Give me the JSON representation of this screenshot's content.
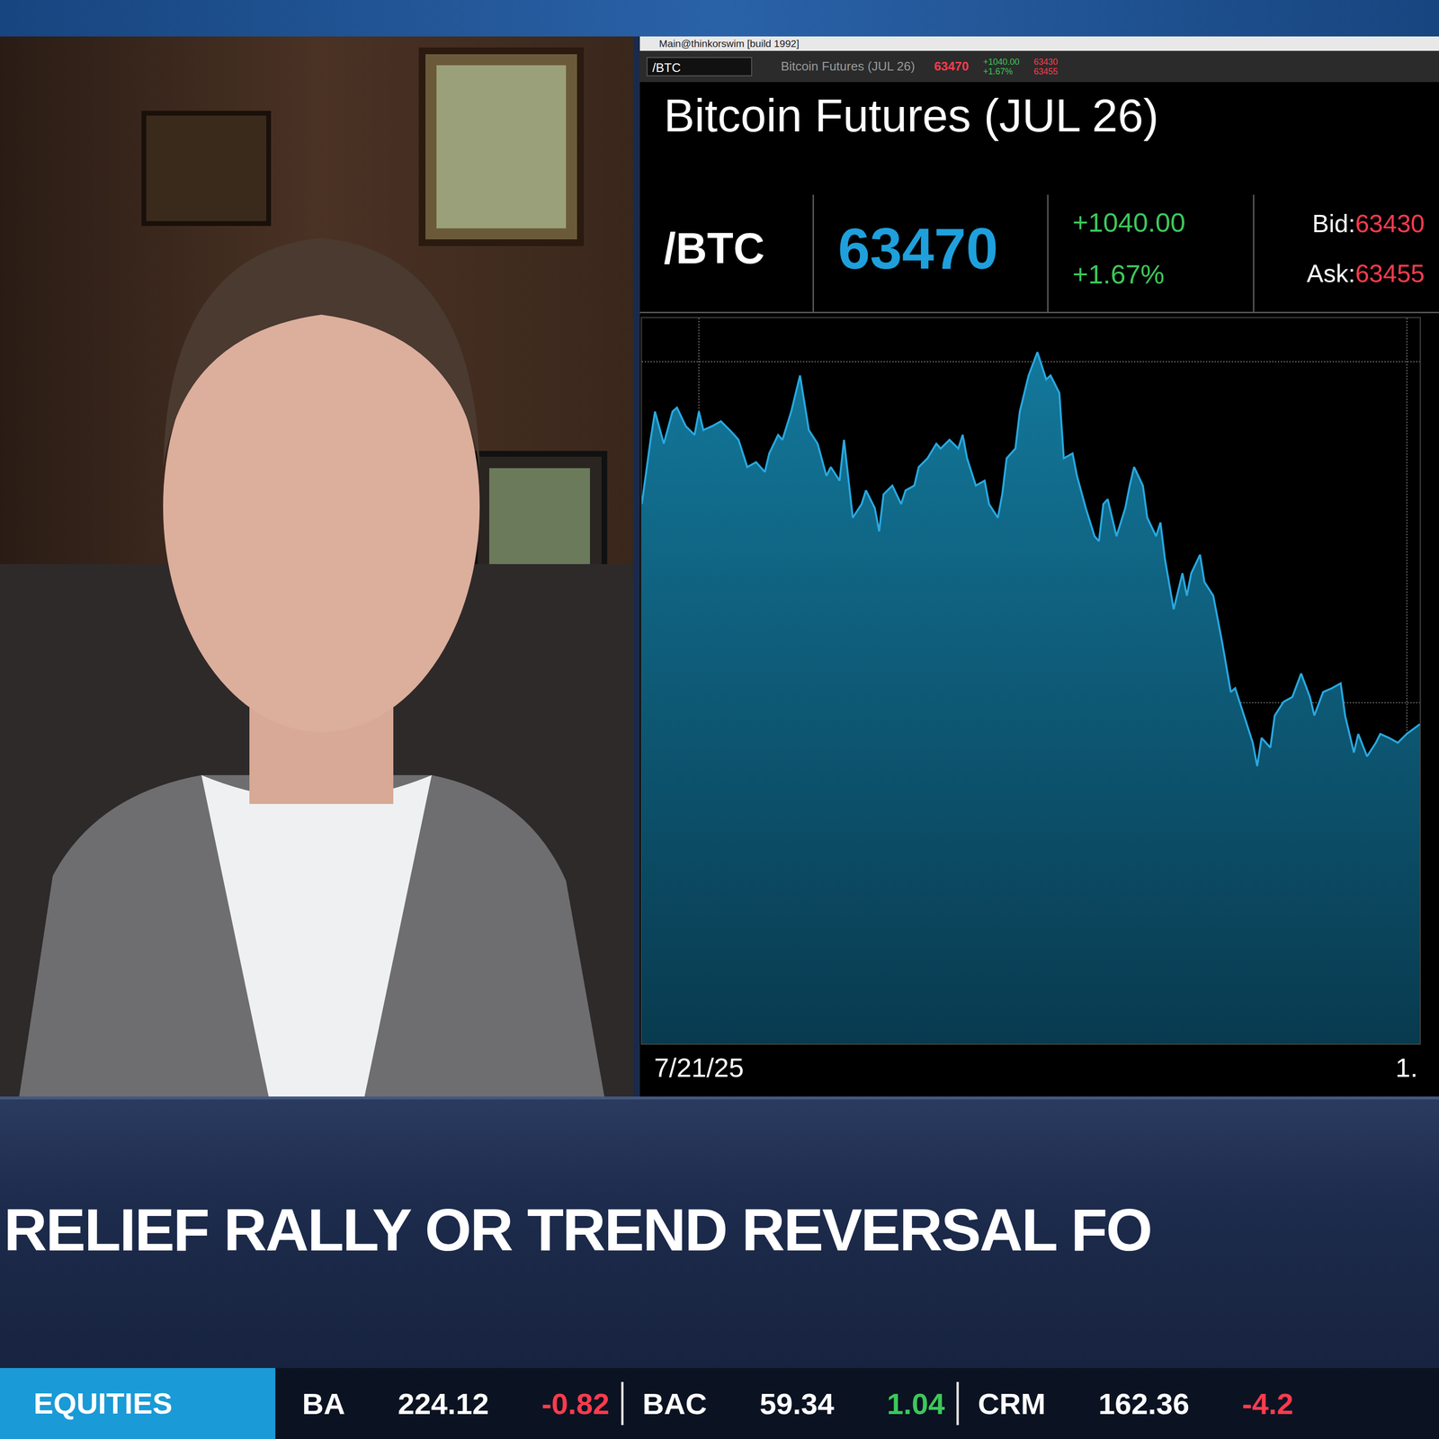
{
  "window": {
    "title": "Main@thinkorswim [build 1992]"
  },
  "toolbar": {
    "symbol": "/BTC",
    "description": "Bitcoin Futures (JUL 26)",
    "last": "63470",
    "change": "+1040.00",
    "change_pct": "+1.67%",
    "bid": "63430",
    "ask": "63455"
  },
  "quote": {
    "title": "Bitcoin Futures (JUL 26)",
    "symbol": "/BTC",
    "last": "63470",
    "change": "+1040.00",
    "change_pct": "+1.67%",
    "bid_label": "Bid:",
    "bid": "63430",
    "ask_label": "Ask:",
    "ask": "63455"
  },
  "chart_data": {
    "type": "area",
    "color": "#29a8e0",
    "grid": true,
    "tick_labels": "x",
    "x": [
      "2025-07-08",
      "2025-07-10",
      "2025-07-11",
      "2025-07-13",
      "2025-07-15",
      "2025-07-16",
      "2025-07-18",
      "2025-07-20",
      "2025-07-21",
      "2025-07-22",
      "2025-07-24",
      "2025-07-26",
      "2025-07-28",
      "2025-07-30",
      "2025-08-01",
      "2025-08-03",
      "2025-08-05",
      "2025-08-06",
      "2025-08-08",
      "2025-08-09",
      "2025-08-11",
      "2025-08-13",
      "2025-08-15",
      "2025-08-17",
      "2025-08-19",
      "2025-08-20",
      "2025-08-22",
      "2025-08-23",
      "2025-08-25",
      "2025-08-27",
      "2025-08-28",
      "2025-08-30",
      "2025-08-31",
      "2025-09-01",
      "2025-09-03",
      "2025-09-05",
      "2025-09-06",
      "2025-09-08",
      "2025-09-09",
      "2025-09-11",
      "2025-09-13",
      "2025-09-14",
      "2025-09-16",
      "2025-09-18",
      "2025-09-19",
      "2025-09-20",
      "2025-09-22",
      "2025-09-24",
      "2025-09-25",
      "2025-09-27",
      "2025-09-28",
      "2025-09-29",
      "2025-10-01",
      "2025-10-02",
      "2025-10-04",
      "2025-10-06",
      "2025-10-08",
      "2025-10-09",
      "2025-10-11",
      "2025-10-12",
      "2025-10-14",
      "2025-10-15",
      "2025-10-17",
      "2025-10-19",
      "2025-10-20",
      "2025-10-21",
      "2025-10-22",
      "2025-10-24",
      "2025-10-26",
      "2025-10-27",
      "2025-10-28",
      "2025-10-30",
      "2025-10-31",
      "2025-11-02",
      "2025-11-03",
      "2025-11-04",
      "2025-11-06",
      "2025-11-08",
      "2025-11-09",
      "2025-11-10",
      "2025-11-12",
      "2025-11-13",
      "2025-11-15",
      "2025-11-17",
      "2025-11-19",
      "2025-11-20",
      "2025-11-22",
      "2025-11-24",
      "2025-11-25",
      "2025-11-26",
      "2025-11-28",
      "2025-11-29",
      "2025-12-01",
      "2025-12-03",
      "2025-12-05",
      "2025-12-07",
      "2025-12-08",
      "2025-12-10",
      "2025-12-12",
      "2025-12-14",
      "2025-12-15",
      "2025-12-17",
      "2025-12-18",
      "2025-12-20",
      "2025-12-22",
      "2025-12-23",
      "2025-12-25",
      "2025-12-27",
      "2025-12-29",
      "2026-01-01"
    ],
    "values": [
      110400,
      117000,
      119900,
      116600,
      119900,
      120300,
      118400,
      117500,
      119900,
      118000,
      118400,
      118900,
      118000,
      117000,
      114200,
      114700,
      113700,
      115600,
      117500,
      117000,
      119900,
      123600,
      118000,
      116600,
      113300,
      114200,
      112800,
      117000,
      109000,
      110400,
      111800,
      110000,
      107600,
      111400,
      112300,
      110400,
      111800,
      112300,
      114200,
      115100,
      116600,
      116100,
      117000,
      116100,
      117500,
      115100,
      112300,
      112800,
      110400,
      109000,
      111400,
      115100,
      116100,
      119900,
      123600,
      126000,
      123200,
      123600,
      121800,
      115100,
      115600,
      113300,
      110000,
      107100,
      106600,
      110400,
      110900,
      107100,
      110000,
      112300,
      114200,
      112300,
      109000,
      107100,
      108500,
      104800,
      99600,
      103300,
      101000,
      103300,
      105200,
      102400,
      101000,
      96300,
      91100,
      91500,
      88700,
      85900,
      83500,
      86400,
      85400,
      88700,
      90100,
      90600,
      93000,
      90600,
      88700,
      91100,
      91500,
      92000,
      88700,
      84900,
      86800,
      84500,
      85900,
      86800,
      86400,
      85900,
      86800,
      87800
    ],
    "xlim": [
      "2025-07-08",
      "2026-01-01"
    ],
    "xticks": [
      {
        "value": "2025-07-21",
        "label": "7/21/25"
      },
      {
        "value": "2025-12-29",
        "label": "1."
      }
    ],
    "ylim": [
      55000,
      129500
    ],
    "yticks": [
      90000,
      125000
    ]
  },
  "headline": "RELIEF RALLY OR TREND REVERSAL FO",
  "ticker": {
    "label": "EQUITIES",
    "items": [
      {
        "symbol": "BA",
        "price": "224.12",
        "change": "-0.82"
      },
      {
        "symbol": "BAC",
        "price": "59.34",
        "change": "1.04"
      },
      {
        "symbol": "CRM",
        "price": "162.36",
        "change": "-4.2"
      }
    ]
  }
}
